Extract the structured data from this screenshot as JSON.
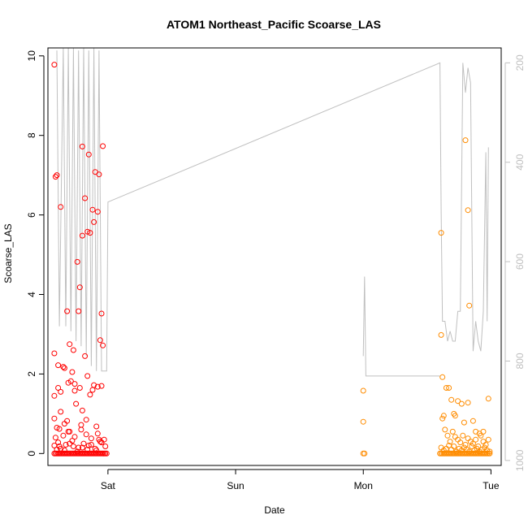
{
  "chart_data": {
    "type": "scatter",
    "title": "ATOM1 Northeast_Pacific Scoarse_LAS",
    "xlabel": "Date",
    "ylabel": "Scoarse_LAS",
    "x_ticks": [
      "Sat",
      "Sun",
      "Mon",
      "Tue"
    ],
    "x_tick_days": [
      1,
      2,
      3,
      4
    ],
    "xlim": [
      0.53,
      4.08
    ],
    "ylim": [
      -0.3,
      10.2
    ],
    "y_ticks": [
      0,
      2,
      4,
      6,
      8,
      10
    ],
    "y2_ticks": [
      200,
      400,
      600,
      800,
      1000
    ],
    "y2lim": [
      1010,
      170
    ],
    "colors": {
      "series_1": "#ff0000",
      "series_2": "#ff8c00",
      "depth_line": "#c0c0c0",
      "axis": "#000000",
      "axis_right": "#bfbfbf"
    },
    "series": [
      {
        "x": [
          0.58,
          0.6,
          0.59,
          0.58,
          0.63,
          0.61,
          0.66,
          0.69,
          0.68,
          0.71,
          0.74,
          0.76,
          0.78,
          0.8,
          0.82,
          0.88,
          0.89,
          0.92,
          0.8,
          0.85,
          0.9,
          0.93,
          0.96,
          0.86,
          0.84,
          0.58,
          0.61,
          0.63,
          0.65,
          0.7,
          0.73,
          0.77,
          0.82,
          0.95,
          0.58,
          0.62,
          0.66,
          0.7,
          0.72,
          0.75,
          0.78,
          0.8,
          0.83,
          0.86,
          0.89,
          0.92,
          0.94,
          0.96,
          0.6,
          0.63,
          0.68,
          0.74,
          0.79,
          0.84,
          0.88,
          0.91,
          0.93,
          0.95,
          0.59,
          0.61,
          0.62,
          0.65,
          0.67,
          0.69,
          0.72,
          0.74,
          0.77,
          0.79,
          0.81,
          0.83,
          0.85,
          0.87,
          0.9,
          0.92,
          0.94,
          0.97,
          0.58,
          0.6,
          0.63,
          0.66,
          0.7,
          0.73,
          0.76,
          0.8,
          0.84,
          0.87,
          0.91,
          0.95,
          0.98,
          0.58,
          0.6,
          0.62,
          0.64,
          0.66,
          0.68,
          0.7,
          0.72,
          0.74,
          0.76,
          0.78,
          0.8,
          0.82,
          0.84,
          0.86,
          0.88,
          0.9,
          0.92,
          0.94,
          0.96,
          0.98,
          0.99,
          0.59,
          0.61,
          0.63,
          0.65,
          0.67,
          0.69,
          0.71,
          0.73,
          0.75,
          0.77,
          0.79,
          0.81,
          0.83,
          0.85,
          0.87,
          0.89,
          0.91,
          0.93,
          0.95,
          0.97
        ],
        "y": [
          9.78,
          7.0,
          6.96,
          2.52,
          6.2,
          2.22,
          2.15,
          1.78,
          3.58,
          1.82,
          1.58,
          4.82,
          4.18,
          5.48,
          6.42,
          6.13,
          5.82,
          6.08,
          7.72,
          7.52,
          7.08,
          7.02,
          7.73,
          5.55,
          5.58,
          1.45,
          1.65,
          1.05,
          2.18,
          2.75,
          2.6,
          3.58,
          2.45,
          3.52,
          0.88,
          0.62,
          0.75,
          0.55,
          2.05,
          1.25,
          1.65,
          1.08,
          0.85,
          1.48,
          1.72,
          1.68,
          2.85,
          2.72,
          0.65,
          1.55,
          0.82,
          1.75,
          0.72,
          1.95,
          1.6,
          0.68,
          0.35,
          1.7,
          0.4,
          0.28,
          0.18,
          0.45,
          0.22,
          0.55,
          0.32,
          0.42,
          0.15,
          0.6,
          0.25,
          0.48,
          0.2,
          0.38,
          0.12,
          0.5,
          0.3,
          0.35,
          0.2,
          0.1,
          0.12,
          0.08,
          0.25,
          0.18,
          0.05,
          0.15,
          0.1,
          0.22,
          0.08,
          0.28,
          0.18,
          0.0,
          0.0,
          0.0,
          0.0,
          0.0,
          0.0,
          0.0,
          0.0,
          0.0,
          0.0,
          0.0,
          0.0,
          0.0,
          0.0,
          0.0,
          0.0,
          0.0,
          0.0,
          0.0,
          0.0,
          0.0,
          0.0,
          0.0,
          0.0,
          0.0,
          0.0,
          0.0,
          0.0,
          0.0,
          0.0,
          0.0,
          0.0,
          0.0,
          0.0,
          0.0,
          0.0,
          0.0,
          0.0,
          0.0,
          0.0,
          0.0,
          0.0
        ]
      },
      {
        "x": [
          3.0,
          3.0,
          3.01,
          3.0,
          3.61,
          3.61,
          3.62,
          3.63,
          3.8,
          3.82,
          3.83,
          3.82,
          3.65,
          3.67,
          3.69,
          3.71,
          3.72,
          3.74,
          3.77,
          3.79,
          3.86,
          3.88,
          3.91,
          3.94,
          3.98,
          3.62,
          3.64,
          3.66,
          3.68,
          3.7,
          3.72,
          3.74,
          3.76,
          3.78,
          3.8,
          3.82,
          3.84,
          3.86,
          3.88,
          3.9,
          3.92,
          3.94,
          3.96,
          3.98,
          3.61,
          3.63,
          3.65,
          3.67,
          3.69,
          3.71,
          3.73,
          3.75,
          3.77,
          3.79,
          3.81,
          3.83,
          3.85,
          3.87,
          3.89,
          3.91,
          3.93,
          3.95,
          3.97,
          3.99,
          3.62,
          3.64,
          3.66,
          3.68,
          3.7,
          3.72,
          3.74,
          3.76,
          3.78,
          3.8,
          3.82,
          3.84,
          3.86,
          3.88,
          3.9,
          3.92,
          3.94,
          3.96,
          3.98,
          3.6,
          3.61,
          3.63,
          3.65,
          3.67,
          3.69,
          3.71,
          3.73,
          3.75,
          3.77,
          3.79,
          3.81,
          3.83,
          3.85,
          3.87,
          3.89,
          3.91,
          3.93,
          3.95,
          3.97,
          3.99
        ],
        "y": [
          1.58,
          0.8,
          0.0,
          0.0,
          5.55,
          2.98,
          1.92,
          0.95,
          7.88,
          6.12,
          3.72,
          1.28,
          1.65,
          1.65,
          1.35,
          1.0,
          0.95,
          1.32,
          1.25,
          0.78,
          0.82,
          0.55,
          0.5,
          0.55,
          1.38,
          0.88,
          0.6,
          0.45,
          0.3,
          0.55,
          0.42,
          0.35,
          0.28,
          0.45,
          0.22,
          0.38,
          0.3,
          0.25,
          0.35,
          0.18,
          0.45,
          0.3,
          0.22,
          0.35,
          0.15,
          0.08,
          0.12,
          0.2,
          0.1,
          0.18,
          0.05,
          0.12,
          0.08,
          0.15,
          0.1,
          0.05,
          0.18,
          0.08,
          0.12,
          0.05,
          0.1,
          0.15,
          0.08,
          0.05,
          0.0,
          0.0,
          0.0,
          0.0,
          0.0,
          0.0,
          0.0,
          0.0,
          0.0,
          0.0,
          0.0,
          0.0,
          0.0,
          0.0,
          0.0,
          0.0,
          0.0,
          0.0,
          0.0,
          0.0,
          0.0,
          0.0,
          0.0,
          0.0,
          0.0,
          0.0,
          0.0,
          0.0,
          0.0,
          0.0,
          0.0,
          0.0,
          0.0,
          0.0,
          0.0,
          0.0,
          0.0,
          0.0,
          0.0,
          0.0
        ]
      }
    ],
    "depth_line": {
      "x": [
        0.6,
        0.62,
        0.65,
        0.67,
        0.69,
        0.71,
        0.73,
        0.75,
        0.77,
        0.79,
        0.81,
        0.83,
        0.85,
        0.87,
        0.89,
        0.91,
        0.93,
        0.95,
        0.97,
        0.99,
        1.0,
        3.6,
        3.61,
        3.62,
        3.64,
        3.66,
        3.68,
        3.7,
        3.72,
        3.74,
        3.76,
        3.78,
        3.8,
        3.82,
        3.84,
        3.86,
        3.88,
        3.9,
        3.92,
        3.94,
        3.96,
        3.97,
        3.98
      ],
      "depth": [
        175,
        730,
        170,
        730,
        170,
        740,
        170,
        760,
        175,
        770,
        170,
        790,
        175,
        810,
        170,
        820,
        175,
        820,
        820,
        820,
        480,
        200,
        500,
        720,
        720,
        760,
        740,
        760,
        760,
        700,
        700,
        200,
        260,
        210,
        240,
        780,
        720,
        760,
        780,
        700,
        380,
        720,
        370
      ],
      "segment2": {
        "x": [
          3.0,
          3.01,
          3.02,
          3.6
        ],
        "depth": [
          790,
          630,
          830,
          830
        ]
      }
    }
  }
}
